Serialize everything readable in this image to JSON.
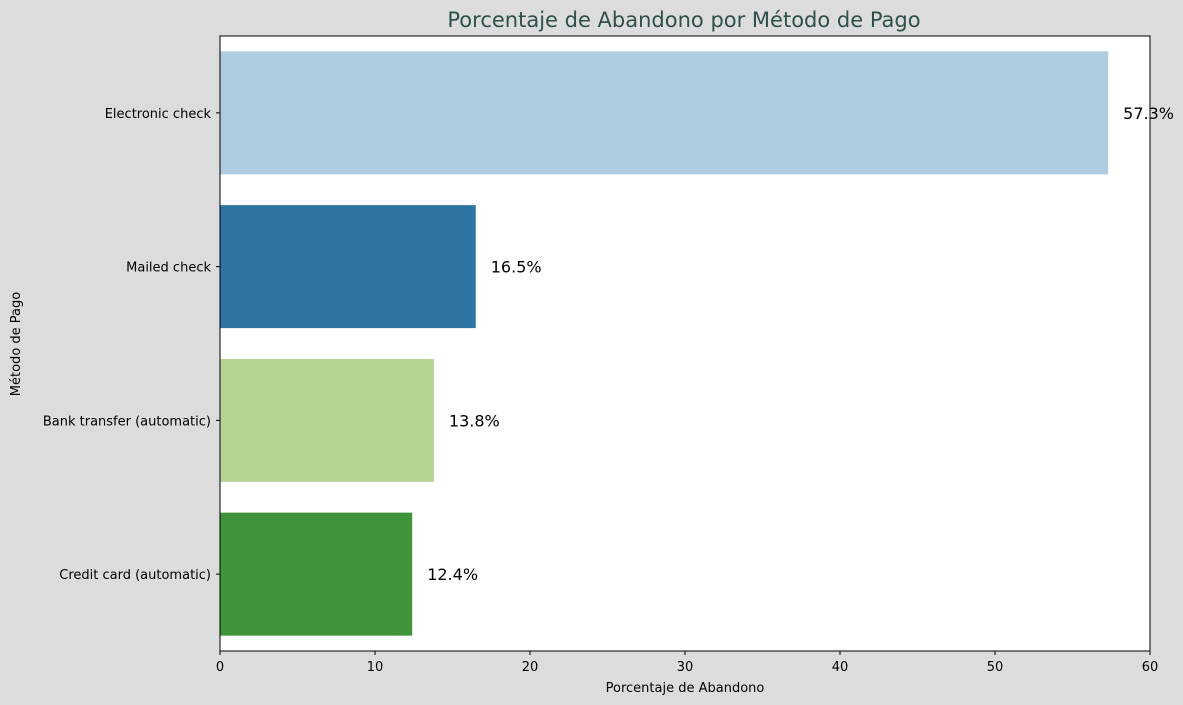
{
  "chart_data": {
    "type": "bar",
    "orientation": "horizontal",
    "title": "Porcentaje de Abandono por Método de Pago",
    "xlabel": "Porcentaje de Abandono",
    "ylabel": "Método de Pago",
    "xlim": [
      0,
      60
    ],
    "xticks": [
      0,
      10,
      20,
      30,
      40,
      50,
      60
    ],
    "categories": [
      "Electronic check",
      "Mailed check",
      "Bank transfer (automatic)",
      "Credit card (automatic)"
    ],
    "values": [
      57.3,
      16.5,
      13.8,
      12.4
    ],
    "value_labels": [
      "57.3%",
      "16.5%",
      "13.8%",
      "12.4%"
    ],
    "bar_colors": [
      "#afcbdf",
      "#2e75a3",
      "#b4d594",
      "#3f933b"
    ],
    "title_color": "#2f4f4f",
    "background_color": "#dcdcdc",
    "plot_background_color": "#ffffff",
    "grid": false,
    "legend": "none"
  }
}
